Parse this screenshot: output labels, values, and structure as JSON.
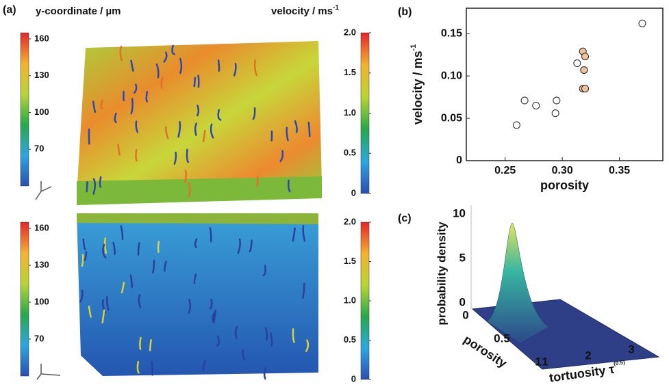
{
  "panels": {
    "a": "(a)",
    "b": "(b)",
    "c": "(c)"
  },
  "panel_a": {
    "colorbar_left": {
      "label": "y-coordinate / µm",
      "lim": [
        40,
        165
      ],
      "ticks": [
        70,
        100,
        130,
        160
      ]
    },
    "colorbar_right": {
      "label": "velocity / ms",
      "label_sup": "-1",
      "lim": [
        0,
        2
      ],
      "ticks": [
        0,
        0.5,
        {
          "value": 1,
          "label": "1.0"
        },
        1.5,
        {
          "value": 2,
          "label": "2.0"
        }
      ]
    }
  },
  "chart_data": [
    {
      "type": "scatter",
      "xlabel": "porosity",
      "ylabel": "velocity / ms",
      "ylabel_sup": "-1",
      "xlim": [
        0.216,
        0.388
      ],
      "ylim": [
        0,
        0.18
      ],
      "xticks": [
        0.25,
        {
          "value": 0.3,
          "label": "0.30"
        },
        0.35
      ],
      "yticks": [
        0,
        0.05,
        {
          "value": 0.1,
          "label": "0.10"
        },
        0.15
      ],
      "series": [
        {
          "color": "#ffffff",
          "x": [
            0.26,
            0.267,
            0.277,
            0.294,
            0.295,
            0.313,
            0.37
          ],
          "values": [
            0.042,
            0.071,
            0.065,
            0.056,
            0.071,
            0.115,
            0.162
          ]
        },
        {
          "color": "#f2c29c",
          "x": [
            0.318,
            0.32,
            0.319,
            0.318,
            0.32
          ],
          "values": [
            0.129,
            0.123,
            0.107,
            0.085,
            0.085
          ]
        }
      ]
    },
    {
      "type": "surface",
      "zlabel": "probability density",
      "xlabel": "porosity",
      "ylabel": "tortuosity τ",
      "ylabel_sup": "(0.5)",
      "zticks": [
        0,
        5,
        10
      ],
      "xticks": [
        0,
        0.5,
        1
      ],
      "yticks": [
        1,
        2,
        3
      ]
    }
  ]
}
